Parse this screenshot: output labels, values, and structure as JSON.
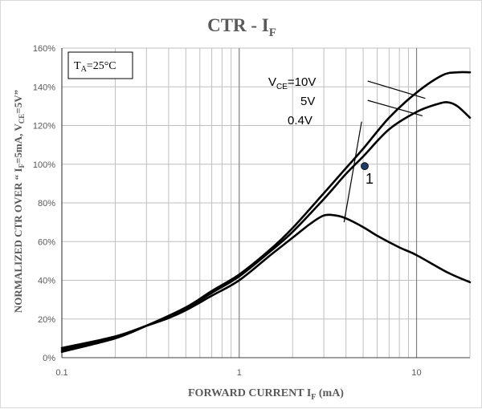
{
  "chart_data": {
    "type": "line",
    "title": "CTR - I",
    "title_sub": "F",
    "xlabel": "FORWARD CURRENT I",
    "xlabel_sub": "F",
    "xlabel_unit": " (mA)",
    "ylabel_prefix": "NORMALIZED CTR OVER  “ I",
    "ylabel_sub1": "F",
    "ylabel_mid": "=5mA, V",
    "ylabel_sub2": "CE",
    "ylabel_suffix": "=5V”",
    "x_scale": "log",
    "xlim": [
      0.1,
      20
    ],
    "ylim": [
      0,
      160
    ],
    "x_tick_labels": [
      "0.1",
      "1",
      "10"
    ],
    "x_tick_values": [
      0.1,
      1,
      10
    ],
    "y_ticks": [
      0,
      20,
      40,
      60,
      80,
      100,
      120,
      140,
      160
    ],
    "y_tick_labels": [
      "0%",
      "20%",
      "40%",
      "60%",
      "80%",
      "100%",
      "120%",
      "140%",
      "160%"
    ],
    "grid": true,
    "condition_box": {
      "prefix": "T",
      "sub": "A",
      "suffix": "=25°C"
    },
    "series": [
      {
        "name_parts": [
          "V",
          "CE",
          "=10V"
        ],
        "x": [
          0.1,
          0.2,
          0.3,
          0.5,
          0.7,
          1,
          1.5,
          2,
          3,
          4,
          5,
          7,
          10,
          14,
          17,
          20
        ],
        "y": [
          3,
          10,
          16.5,
          26,
          34.5,
          43,
          56,
          67,
          85,
          98,
          108,
          124,
          137,
          146,
          147.5,
          147.5
        ]
      },
      {
        "name_parts": [
          "",
          "",
          "5V"
        ],
        "x": [
          0.1,
          0.2,
          0.3,
          0.5,
          0.7,
          1,
          1.5,
          2,
          3,
          4,
          5,
          7,
          10,
          13,
          15,
          17,
          20
        ],
        "y": [
          4,
          10.5,
          16.5,
          25.5,
          33.5,
          42,
          55,
          65,
          82,
          95,
          104,
          118,
          127,
          131,
          132,
          130,
          124
        ]
      },
      {
        "name_parts": [
          "",
          "",
          "0.4V"
        ],
        "x": [
          0.1,
          0.2,
          0.3,
          0.4,
          0.5,
          0.7,
          1,
          1.5,
          2,
          2.5,
          3,
          3.5,
          4,
          5,
          6,
          8,
          10,
          15,
          20
        ],
        "y": [
          5,
          11,
          16.5,
          20.5,
          24.5,
          32,
          40,
          53,
          62,
          69,
          73.5,
          73.5,
          72,
          67.5,
          63,
          57,
          53,
          44,
          39
        ]
      }
    ],
    "marker": {
      "label": "1",
      "x": 5.1,
      "y": 99
    },
    "leader_lines": [
      {
        "from_x": 5.3,
        "from_y": 143,
        "to_x": 11.2,
        "to_y": 134
      },
      {
        "from_x": 5.3,
        "from_y": 133,
        "to_x": 10.8,
        "to_y": 125
      },
      {
        "from_x": 4.9,
        "from_y": 122,
        "to_x": 3.9,
        "to_y": 70
      }
    ]
  },
  "colors": {
    "curve": "#000000",
    "grid": "#bfbfbf",
    "text": "#595959",
    "marker": "#1f3864"
  }
}
